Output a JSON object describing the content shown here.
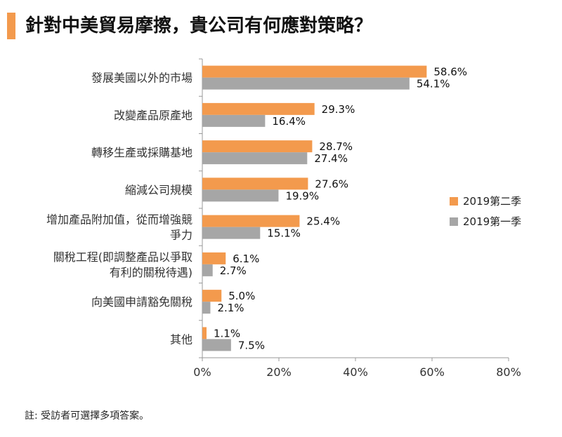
{
  "title": "針對中美貿易摩擦，貴公司有何應對策略？",
  "footnote": "註: 受訪者可選擇多項答案。",
  "colors": {
    "accent": "#f39a4d",
    "q2": "#f39a4d",
    "q1": "#a6a6a6",
    "axis": "#999999"
  },
  "chart_data": {
    "type": "bar",
    "orientation": "horizontal",
    "categories": [
      [
        "發展美國以外的市場"
      ],
      [
        "改變產品原產地"
      ],
      [
        "轉移生產或採購基地"
      ],
      [
        "縮減公司規模"
      ],
      [
        "增加產品附加值，從而增強競",
        "爭力"
      ],
      [
        "關稅工程(即調整產品以爭取",
        "有利的關稅待遇)"
      ],
      [
        "向美國申請豁免關稅"
      ],
      [
        "其他"
      ]
    ],
    "series": [
      {
        "name": "2019第二季",
        "values": [
          58.6,
          29.3,
          28.7,
          27.6,
          25.4,
          6.1,
          5.0,
          1.1
        ],
        "labels": [
          "58.6%",
          "29.3%",
          "28.7%",
          "27.6%",
          "25.4%",
          "6.1%",
          "5.0%",
          "1.1%"
        ]
      },
      {
        "name": "2019第一季",
        "values": [
          54.1,
          16.4,
          27.4,
          19.9,
          15.1,
          2.7,
          2.1,
          7.5
        ],
        "labels": [
          "54.1%",
          "16.4%",
          "27.4%",
          "19.9%",
          "15.1%",
          "2.7%",
          "2.1%",
          "7.5%"
        ]
      }
    ],
    "xlim": [
      0,
      80
    ],
    "xticks": [
      0,
      20,
      40,
      60,
      80
    ],
    "xtick_labels": [
      "0%",
      "20%",
      "40%",
      "60%",
      "80%"
    ],
    "legend_position": "right",
    "title": "針對中美貿易摩擦，貴公司有何應對策略？"
  }
}
